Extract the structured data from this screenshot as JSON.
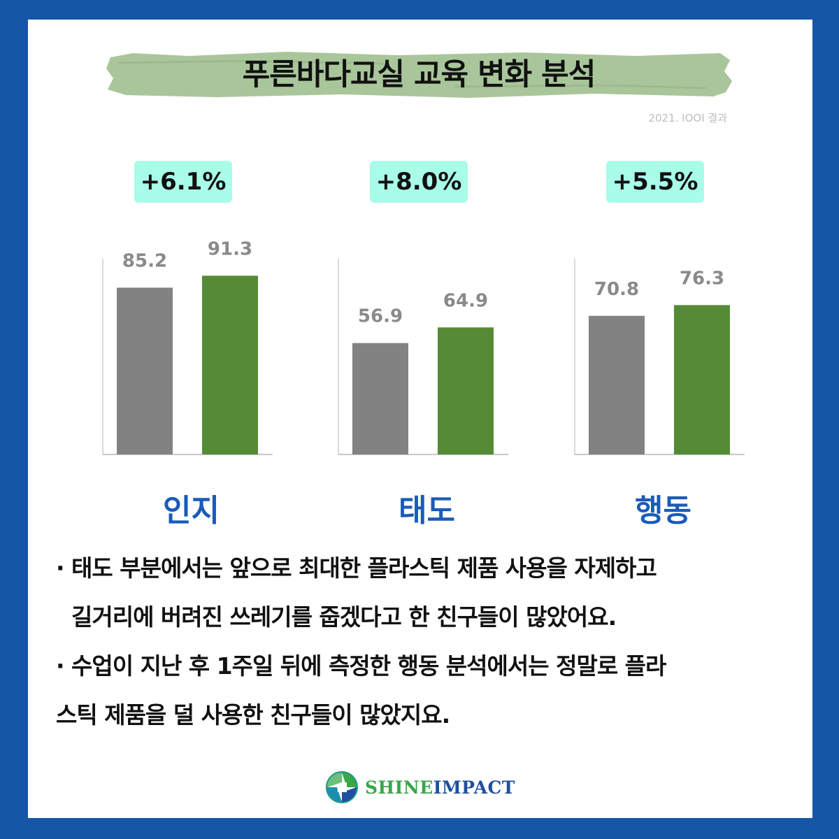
{
  "header": {
    "title": "푸른바다교실 교육 변화 분석",
    "note": "2021. IOOI 결과"
  },
  "colors": {
    "frame": "#1557a6",
    "before_bar": "#828282",
    "after_bar": "#558b36",
    "badge": "#a8fce8",
    "category_text": "#1a5bb8",
    "title_brush": "#a9c69b"
  },
  "chart_data": [
    {
      "type": "bar",
      "category": "인지",
      "change": "+6.1%",
      "values": [
        85.2,
        91.3
      ],
      "value_labels": [
        "85.2",
        "91.3"
      ]
    },
    {
      "type": "bar",
      "category": "태도",
      "change": "+8.0%",
      "values": [
        56.9,
        64.9
      ],
      "value_labels": [
        "56.9",
        "64.9"
      ]
    },
    {
      "type": "bar",
      "category": "행동",
      "change": "+5.5%",
      "values": [
        70.8,
        76.3
      ],
      "value_labels": [
        "70.8",
        "76.3"
      ]
    }
  ],
  "notes": [
    "· 태도 부분에서는 앞으로 최대한 플라스틱 제품 사용을 자제하고",
    "길거리에 버려진 쓰레기를 줍겠다고 한 친구들이 많았어요.",
    "· 수업이 지난 후 1주일 뒤에 측정한 행동 분석에서는 정말로 플라",
    "스틱 제품을 덜 사용한 친구들이 많았지요."
  ],
  "logo": {
    "shine": "SHINE",
    "impact": "IMPACT"
  }
}
